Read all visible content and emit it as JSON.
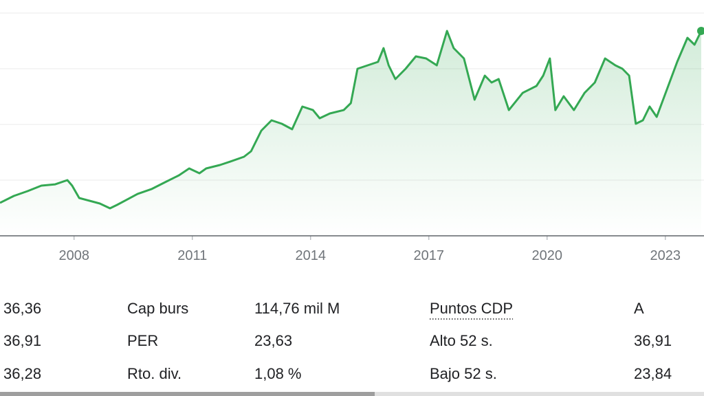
{
  "chart_data": {
    "type": "line",
    "x": [
      2006.12,
      2006.47,
      2006.82,
      2007.17,
      2007.52,
      2007.83,
      2007.95,
      2008.13,
      2008.39,
      2008.65,
      2008.91,
      2009.09,
      2009.35,
      2009.61,
      2009.96,
      2010.31,
      2010.66,
      2010.92,
      2011.18,
      2011.35,
      2011.7,
      2011.96,
      2012.31,
      2012.49,
      2012.75,
      2013.01,
      2013.27,
      2013.53,
      2013.79,
      2014.06,
      2014.23,
      2014.49,
      2014.84,
      2015.02,
      2015.19,
      2015.45,
      2015.71,
      2015.85,
      2015.98,
      2016.15,
      2016.41,
      2016.67,
      2016.93,
      2017.2,
      2017.46,
      2017.63,
      2017.89,
      2018.16,
      2018.42,
      2018.59,
      2018.77,
      2019.03,
      2019.38,
      2019.73,
      2019.9,
      2020.07,
      2020.21,
      2020.42,
      2020.68,
      2020.95,
      2021.21,
      2021.47,
      2021.73,
      2021.91,
      2022.08,
      2022.25,
      2022.43,
      2022.6,
      2022.78,
      2023.04,
      2023.3,
      2023.56,
      2023.74,
      2023.91
    ],
    "series": [
      {
        "color": "#34a853",
        "values": [
          12.74,
          13.73,
          14.42,
          15.21,
          15.4,
          16.0,
          15.21,
          13.43,
          13.04,
          12.64,
          11.95,
          12.44,
          13.23,
          14.02,
          14.71,
          15.7,
          16.69,
          17.68,
          16.99,
          17.68,
          18.17,
          18.66,
          19.36,
          20.15,
          23.11,
          24.59,
          24.1,
          23.31,
          26.57,
          26.07,
          24.89,
          25.58,
          26.07,
          27.06,
          32.0,
          32.5,
          32.99,
          34.97,
          32.5,
          30.52,
          32.0,
          33.78,
          33.48,
          32.5,
          37.44,
          34.97,
          33.48,
          27.56,
          31.01,
          30.03,
          30.52,
          26.07,
          28.54,
          29.53,
          31.01,
          33.48,
          26.07,
          28.05,
          26.07,
          28.54,
          30.03,
          33.48,
          32.5,
          32.0,
          31.01,
          24.1,
          24.59,
          26.57,
          25.09,
          29.04,
          32.99,
          36.45,
          35.46,
          37.44
        ]
      }
    ],
    "xlim": [
      2006.12,
      2023.98
    ],
    "xticks": [
      2008,
      2011,
      2014,
      2017,
      2020,
      2023
    ],
    "ylim": [
      8,
      41.88
    ],
    "ygrid": [
      16,
      24,
      32,
      40
    ]
  },
  "stats": {
    "rows": [
      [
        "36,36",
        "Cap burs",
        "114,76 mil M",
        "Puntos CDP",
        "A"
      ],
      [
        "36,91",
        "PER",
        "23,63",
        "Alto 52 s.",
        "36,91"
      ],
      [
        "36,28",
        "Rto. div.",
        "1,08 %",
        "Bajo 52 s.",
        "23,84"
      ]
    ]
  }
}
